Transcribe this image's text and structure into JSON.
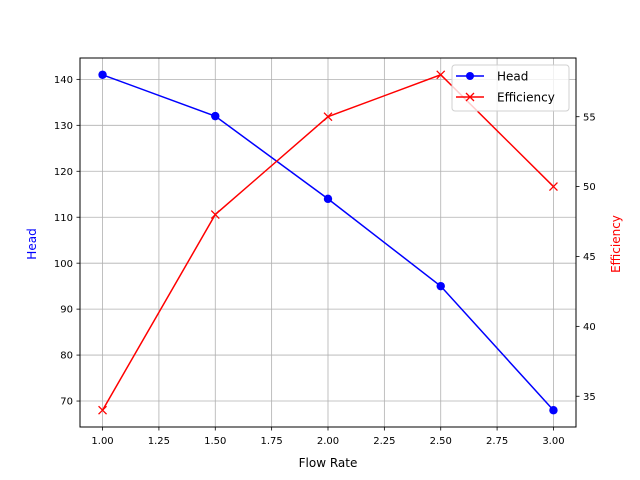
{
  "chart_data": {
    "type": "line",
    "title": "",
    "xlabel": "Flow Rate",
    "x": [
      1.0,
      1.5,
      2.0,
      2.5,
      3.0
    ],
    "xlim": [
      0.9,
      3.1
    ],
    "xticks": [
      1.0,
      1.25,
      1.5,
      1.75,
      2.0,
      2.25,
      2.5,
      2.75,
      3.0
    ],
    "xtick_labels": [
      "1.00",
      "1.25",
      "1.50",
      "1.75",
      "2.00",
      "2.25",
      "2.50",
      "2.75",
      "3.00"
    ],
    "grid": true,
    "legend_position": "upper right",
    "series": [
      {
        "name": "Head",
        "axis": "left",
        "values": [
          141,
          132,
          114,
          95,
          68
        ],
        "color": "#0000ff",
        "marker": "o"
      },
      {
        "name": "Efficiency",
        "axis": "right",
        "values": [
          34,
          48,
          55,
          58,
          50
        ],
        "color": "#ff0000",
        "marker": "x"
      }
    ],
    "y_left": {
      "label": "Head",
      "color": "#0000ff",
      "ylim": [
        64.35,
        144.65
      ],
      "ticks": [
        70,
        80,
        90,
        100,
        110,
        120,
        130,
        140
      ]
    },
    "y_right": {
      "label": "Efficiency",
      "color": "#ff0000",
      "ylim": [
        32.8,
        59.2
      ],
      "ticks": [
        35,
        40,
        45,
        50,
        55
      ]
    }
  }
}
